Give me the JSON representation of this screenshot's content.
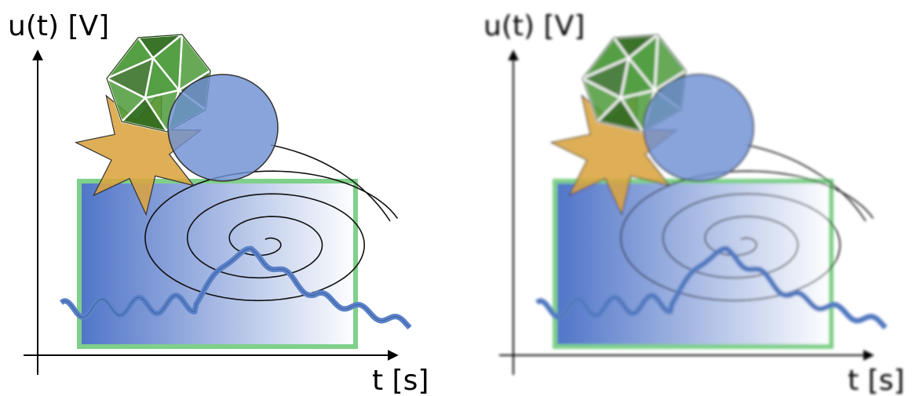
{
  "panels": [
    {
      "quality": "sharp"
    },
    {
      "quality": "blurred"
    }
  ],
  "axes": {
    "y_label": "u(t) [V]",
    "x_label": "t [s]"
  },
  "shapes": {
    "star": "orange-star",
    "polyhedron": "green-icosahedron",
    "circle": "blue-circle",
    "rectangle": "gradient-rectangle",
    "spiral": "spiral-curve",
    "ribbon": "wavy-ribbon"
  },
  "colors": {
    "star_fill": "#d9a440",
    "poly_fill": "#4c9a3a",
    "poly_dark": "#2f6b1f",
    "circle_fill": "#6f90d3",
    "rect_stroke": "#7fd08a",
    "rect_grad_start": "#4f74c8",
    "rect_grad_end": "#ffffff",
    "ribbon": "#5b82c8",
    "outline": "#333333"
  }
}
